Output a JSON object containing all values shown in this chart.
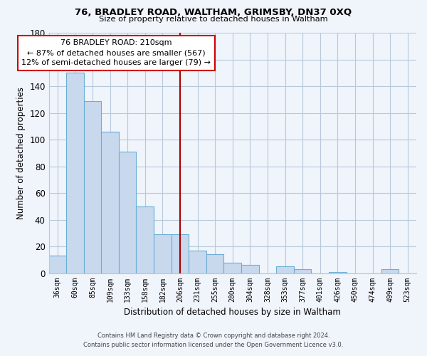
{
  "title": "76, BRADLEY ROAD, WALTHAM, GRIMSBY, DN37 0XQ",
  "subtitle": "Size of property relative to detached houses in Waltham",
  "xlabel": "Distribution of detached houses by size in Waltham",
  "ylabel": "Number of detached properties",
  "bar_labels": [
    "36sqm",
    "60sqm",
    "85sqm",
    "109sqm",
    "133sqm",
    "158sqm",
    "182sqm",
    "206sqm",
    "231sqm",
    "255sqm",
    "280sqm",
    "304sqm",
    "328sqm",
    "353sqm",
    "377sqm",
    "401sqm",
    "426sqm",
    "450sqm",
    "474sqm",
    "499sqm",
    "523sqm"
  ],
  "bar_values": [
    13,
    150,
    129,
    106,
    91,
    50,
    29,
    29,
    17,
    14,
    8,
    6,
    0,
    5,
    3,
    0,
    1,
    0,
    0,
    3,
    0
  ],
  "highlight_index": 7,
  "ylim": [
    0,
    180
  ],
  "yticks": [
    0,
    20,
    40,
    60,
    80,
    100,
    120,
    140,
    160,
    180
  ],
  "bar_color": "#c8d9ee",
  "bar_edge_color": "#6baed6",
  "highlight_line_color": "#aa0000",
  "annotation_box_text": "76 BRADLEY ROAD: 210sqm\n← 87% of detached houses are smaller (567)\n12% of semi-detached houses are larger (79) →",
  "annotation_box_facecolor": "#ffffff",
  "annotation_box_edgecolor": "#cc0000",
  "footer_line1": "Contains HM Land Registry data © Crown copyright and database right 2024.",
  "footer_line2": "Contains public sector information licensed under the Open Government Licence v3.0.",
  "background_color": "#f0f4fb",
  "grid_color": "#b8c8dc"
}
